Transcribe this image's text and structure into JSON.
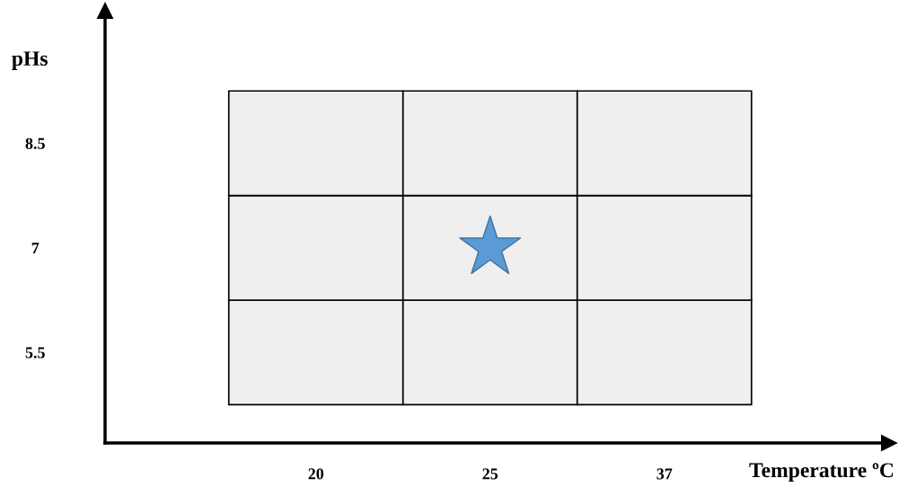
{
  "chart_data": {
    "type": "scatter",
    "xlabel": "Temperature ºC",
    "ylabel": "pHs",
    "categories": [
      "20",
      "25",
      "37"
    ],
    "series": [
      {
        "x": [
          "25"
        ],
        "values": [
          7
        ],
        "color": "#5b9bd5"
      }
    ],
    "marker": "star",
    "ylim": [
      4.2,
      10.4
    ],
    "yticks": [
      5.5,
      7,
      8.5
    ]
  }
}
